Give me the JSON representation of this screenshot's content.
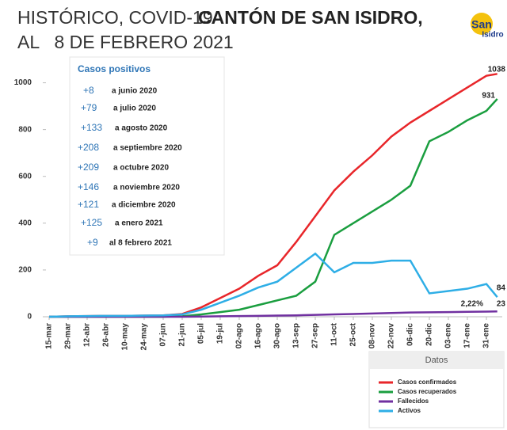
{
  "title_part1": "HISTÓRICO, COVID-19",
  "title_part2": "CANTÓN DE SAN ISIDRO,",
  "title_line2": "AL   8 DE FEBRERO 2021",
  "logo": {
    "line1": "San",
    "line2": "Isidro"
  },
  "info_box": {
    "title": "Casos positivos",
    "rows": [
      [
        "+8",
        "a junio 2020"
      ],
      [
        "+79",
        "a julio 2020"
      ],
      [
        "+133",
        "a agosto 2020"
      ],
      [
        "+208",
        "a septiembre 2020"
      ],
      [
        "+209",
        "a octubre 2020"
      ],
      [
        "+146",
        "a noviembre 2020"
      ],
      [
        "+121",
        "a diciembre 2020"
      ],
      [
        "+125",
        "a  enero 2021"
      ],
      [
        "+9",
        "al  8  febrero 2021"
      ]
    ]
  },
  "chart_data": {
    "type": "line",
    "legend_title": "Datos",
    "x": [
      0,
      14,
      28,
      42,
      56,
      70,
      84,
      98,
      112,
      126,
      140,
      154,
      168,
      182,
      196,
      210,
      224,
      238,
      252,
      266,
      280,
      294,
      308,
      322,
      330
    ],
    "xlim": [
      -4,
      334
    ],
    "xticks": [
      {
        "value": 0,
        "label": "15-mar"
      },
      {
        "value": 14,
        "label": "29-mar"
      },
      {
        "value": 28,
        "label": "12-abr"
      },
      {
        "value": 42,
        "label": "26-abr"
      },
      {
        "value": 56,
        "label": "10-may"
      },
      {
        "value": 70,
        "label": "24-may"
      },
      {
        "value": 84,
        "label": "07-jun"
      },
      {
        "value": 98,
        "label": "21-jun"
      },
      {
        "value": 112,
        "label": "05-jul"
      },
      {
        "value": 126,
        "label": "19-jul"
      },
      {
        "value": 140,
        "label": "02-ago"
      },
      {
        "value": 154,
        "label": "16-ago"
      },
      {
        "value": 168,
        "label": "30-ago"
      },
      {
        "value": 182,
        "label": "13-sep"
      },
      {
        "value": 196,
        "label": "27-sep"
      },
      {
        "value": 210,
        "label": "11-oct"
      },
      {
        "value": 224,
        "label": "25-oct"
      },
      {
        "value": 238,
        "label": "08-nov"
      },
      {
        "value": 252,
        "label": "22-nov"
      },
      {
        "value": 266,
        "label": "06-dic"
      },
      {
        "value": 280,
        "label": "20-dic"
      },
      {
        "value": 294,
        "label": "03-ene"
      },
      {
        "value": 308,
        "label": "17-ene"
      },
      {
        "value": 322,
        "label": "31-ene"
      }
    ],
    "ylim": [
      0,
      1100
    ],
    "yticks": [
      0,
      200,
      400,
      600,
      800,
      1000
    ],
    "grid": false,
    "series": [
      {
        "name": "Casos confirmados",
        "color": "#e8262a",
        "values": [
          0,
          2,
          3,
          4,
          4,
          5,
          6,
          12,
          40,
          80,
          120,
          175,
          220,
          320,
          430,
          540,
          620,
          690,
          770,
          830,
          880,
          930,
          980,
          1030,
          1038
        ]
      },
      {
        "name": "Casos recuperados",
        "color": "#1a9e3f",
        "values": [
          0,
          0,
          0,
          0,
          0,
          0,
          0,
          2,
          10,
          20,
          30,
          50,
          70,
          90,
          150,
          350,
          400,
          450,
          500,
          560,
          750,
          790,
          840,
          880,
          931
        ]
      },
      {
        "name": "Fallecidos",
        "color": "#7030a0",
        "values": [
          0,
          0,
          0,
          0,
          0,
          0,
          0,
          0,
          1,
          2,
          3,
          4,
          5,
          6,
          8,
          10,
          12,
          14,
          16,
          18,
          19,
          20,
          21,
          22,
          23
        ]
      },
      {
        "name": "Activos",
        "color": "#2eaee6",
        "values": [
          0,
          2,
          3,
          4,
          4,
          5,
          6,
          10,
          30,
          60,
          90,
          125,
          150,
          210,
          270,
          190,
          230,
          230,
          240,
          240,
          100,
          110,
          120,
          140,
          84
        ]
      }
    ],
    "annotations": [
      "1038",
      "931",
      "84",
      "23",
      "2,22%"
    ]
  }
}
